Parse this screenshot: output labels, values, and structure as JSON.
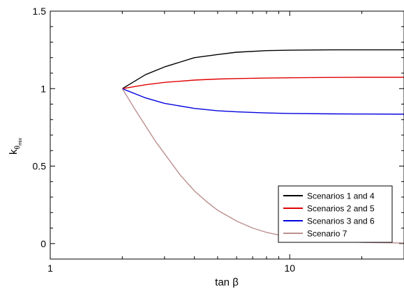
{
  "chart_data": {
    "type": "line",
    "xlabel": "tan β",
    "ylabel": {
      "base": "k",
      "sub1": "θ",
      "sub2": "mix"
    },
    "xscale": "log",
    "xlim": [
      1,
      30
    ],
    "ylim": [
      -0.1,
      1.5
    ],
    "x_ticks": [
      {
        "value": 1,
        "label": "1"
      },
      {
        "value": 10,
        "label": "10"
      }
    ],
    "y_ticks": [
      {
        "value": 0,
        "label": "0"
      },
      {
        "value": 0.5,
        "label": "0.5"
      },
      {
        "value": 1,
        "label": "1"
      },
      {
        "value": 1.5,
        "label": "1.5"
      }
    ],
    "legend_position": "lower-right",
    "series": [
      {
        "name": "Scenarios 1 and 4",
        "color": "#000000",
        "x": [
          2,
          2.5,
          3,
          4,
          5,
          6,
          8,
          10,
          15,
          20,
          30
        ],
        "y": [
          1.0,
          1.09,
          1.14,
          1.2,
          1.22,
          1.235,
          1.245,
          1.248,
          1.25,
          1.25,
          1.25
        ]
      },
      {
        "name": "Scenarios 2 and 5",
        "color": "#e00000",
        "x": [
          2,
          2.5,
          3,
          4,
          5,
          6,
          8,
          10,
          15,
          20,
          30
        ],
        "y": [
          1.0,
          1.025,
          1.04,
          1.055,
          1.062,
          1.065,
          1.068,
          1.07,
          1.072,
          1.073,
          1.073
        ]
      },
      {
        "name": "Scenarios 3 and 6",
        "color": "#0000e0",
        "x": [
          2,
          2.5,
          3,
          4,
          5,
          6,
          8,
          10,
          15,
          20,
          30
        ],
        "y": [
          1.0,
          0.94,
          0.905,
          0.872,
          0.857,
          0.85,
          0.843,
          0.84,
          0.837,
          0.836,
          0.835
        ]
      },
      {
        "name": "Scenario 7",
        "color": "#bc8f8f",
        "x": [
          2,
          2.25,
          2.5,
          2.75,
          3,
          3.5,
          4,
          4.5,
          5,
          6,
          7,
          8,
          10,
          12,
          15,
          20,
          25,
          30
        ],
        "y": [
          1.0,
          0.87,
          0.76,
          0.66,
          0.58,
          0.44,
          0.34,
          0.27,
          0.215,
          0.145,
          0.1,
          0.072,
          0.04,
          0.025,
          0.015,
          0.008,
          0.005,
          0.004
        ]
      }
    ]
  }
}
